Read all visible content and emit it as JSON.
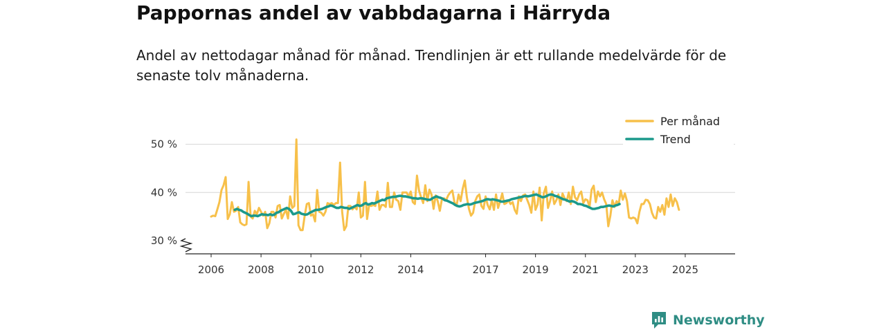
{
  "header": {
    "title": "Pappornas andel av vabbdagarna i Härryda",
    "subtitle": "Andel av nettodagar månad för månad. Trendlinjen är ett rullande medelvärde för de senaste tolv månaderna."
  },
  "brand": {
    "name": "Newsworthy",
    "icon": "newsworthy-logo-icon",
    "color": "#2f8d84"
  },
  "chart_data": {
    "type": "line",
    "title": "Pappornas andel av vabbdagarna i Härryda",
    "xlabel": "",
    "ylabel": "",
    "ylim": [
      30,
      50
    ],
    "y_ticks": [
      {
        "value": 30,
        "label": "30 %"
      },
      {
        "value": 40,
        "label": "40 %"
      },
      {
        "value": 50,
        "label": "50 %"
      }
    ],
    "x_ticks": [
      {
        "value": 2006,
        "label": "2006"
      },
      {
        "value": 2008,
        "label": "2008"
      },
      {
        "value": 2010,
        "label": "2010"
      },
      {
        "value": 2012,
        "label": "2012"
      },
      {
        "value": 2014,
        "label": "2014"
      },
      {
        "value": 2017,
        "label": "2017"
      },
      {
        "value": 2019,
        "label": "2019"
      },
      {
        "value": 2021,
        "label": "2021"
      },
      {
        "value": 2023,
        "label": "2023"
      },
      {
        "value": 2025,
        "label": "2025"
      }
    ],
    "axis_break": true,
    "grid": true,
    "legend_position": "top-right",
    "series": [
      {
        "name": "Per månad",
        "color": "#f7c04a",
        "x_start": 2006.0,
        "x_step": 0.08333,
        "values": [
          35,
          35.2,
          35.1,
          36.5,
          38,
          40.5,
          41.5,
          43.2,
          34.5,
          35.5,
          38,
          36,
          36.2,
          37,
          33.8,
          33.4,
          33.2,
          33.4,
          42.2,
          35,
          34.6,
          36.2,
          35.5,
          36.8,
          36,
          35.2,
          36,
          32.6,
          33.6,
          36,
          36,
          34.8,
          37.2,
          37.4,
          34.6,
          35.6,
          36.4,
          34.6,
          39.2,
          36.8,
          37.2,
          51,
          33.2,
          32.2,
          32.2,
          35.2,
          37.6,
          37.8,
          35.2,
          35.5,
          34,
          40.5,
          36,
          35.8,
          35.2,
          36,
          37.8,
          37.6,
          37.8,
          37.4,
          37.8,
          37.8,
          46.2,
          36,
          32.2,
          33,
          37.2,
          37.2,
          36.5,
          37,
          36.5,
          40,
          34.8,
          35.2,
          42.2,
          34.5,
          37.4,
          37.2,
          37.4,
          37.2,
          40.2,
          36.4,
          37.4,
          37.4,
          37,
          42,
          37,
          37,
          40,
          38.5,
          38.2,
          36.4,
          40,
          40,
          40,
          39.2,
          40.2,
          38,
          37.6,
          43.5,
          40.4,
          39,
          37.8,
          41.5,
          38.2,
          40.6,
          39.6,
          36.6,
          39.4,
          38.2,
          36.2,
          38.6,
          38.8,
          38.4,
          39.4,
          40,
          40.4,
          38,
          37.2,
          39.6,
          38.2,
          40.8,
          42.5,
          39,
          36.6,
          35.2,
          35.8,
          38.2,
          39.2,
          39.6,
          37.2,
          36.6,
          39.2,
          37.4,
          36.5,
          38.4,
          36.4,
          39.6,
          36.8,
          38.2,
          39.8,
          37.6,
          37.8,
          38.4,
          37.6,
          38,
          36.4,
          35.6,
          39.2,
          38.2,
          39.4,
          39.6,
          38.5,
          37.4,
          35.8,
          40.2,
          36.4,
          37.5,
          41,
          34.2,
          39.8,
          41.2,
          36.8,
          38.2,
          40.2,
          37.6,
          38.4,
          39.6,
          37.4,
          39.8,
          38.8,
          38.2,
          40,
          37.6,
          41.2,
          39,
          38.4,
          39.6,
          40.2,
          37.8,
          38.6,
          38.4,
          37,
          40.6,
          41.4,
          38,
          40.2,
          39.2,
          40,
          38.6,
          37.6,
          33,
          35.2,
          38.4,
          37,
          38.2,
          37.6,
          40.4,
          38.5,
          39.8,
          38.2,
          34.8,
          34.6,
          34.8,
          34.6,
          33.6,
          36,
          37.6,
          37.6,
          38.5,
          38.4,
          37.6,
          35.8,
          34.8,
          34.6,
          37,
          36,
          37.4,
          35.4,
          38.8,
          37,
          39.6,
          37.2,
          38.8,
          38,
          36.4
        ]
      },
      {
        "name": "Trend",
        "color": "#1b998b",
        "x_start": 2006.95,
        "x_step": 0.08333,
        "values": [
          36.4,
          36.6,
          36.4,
          36.3,
          36,
          35.8,
          35.6,
          35.3,
          35.1,
          35.2,
          35.2,
          35.1,
          35.3,
          35.5,
          35.4,
          35.4,
          35.3,
          35.5,
          35.3,
          35.4,
          35.8,
          35.9,
          36.2,
          36.4,
          36.6,
          36.8,
          36.6,
          36.2,
          35.5,
          35.6,
          35.8,
          35.9,
          35.6,
          35.5,
          35.4,
          35.5,
          35.8,
          36,
          36.2,
          36.4,
          36.4,
          36.5,
          36.6,
          36.8,
          37,
          37.1,
          37.3,
          37.2,
          37,
          36.8,
          36.8,
          37,
          36.9,
          36.8,
          36.8,
          36.6,
          36.8,
          37,
          37.2,
          37.4,
          37.2,
          37.3,
          37.6,
          37.8,
          37.5,
          37.6,
          37.8,
          37.7,
          37.9,
          38.1,
          38.3,
          38.5,
          38.4,
          38.8,
          38.9,
          39,
          39.1,
          39.1,
          39.2,
          39.3,
          39.3,
          39.2,
          39.2,
          39.1,
          39,
          38.9,
          38.8,
          38.8,
          38.7,
          38.8,
          38.8,
          38.7,
          38.6,
          38.5,
          38.5,
          38.8,
          39,
          39.2,
          39,
          38.9,
          38.7,
          38.4,
          38.3,
          38.1,
          37.9,
          37.7,
          37.4,
          37.2,
          37.1,
          37.2,
          37.4,
          37.5,
          37.6,
          37.5,
          37.6,
          37.8,
          37.9,
          38,
          38.1,
          38.2,
          38.4,
          38.6,
          38.6,
          38.5,
          38.6,
          38.5,
          38.4,
          38.3,
          38.1,
          38.1,
          38.2,
          38.3,
          38.4,
          38.6,
          38.7,
          38.8,
          38.9,
          39,
          39.1,
          39.2,
          39.3,
          39.2,
          39.3,
          39.4,
          39.5,
          39.6,
          39.4,
          39.2,
          39,
          39.1,
          39.3,
          39.5,
          39.6,
          39.5,
          39.3,
          39.2,
          39,
          38.8,
          38.6,
          38.5,
          38.3,
          38.1,
          38.2,
          38.1,
          37.9,
          37.6,
          37.6,
          37.5,
          37.3,
          37.2,
          37,
          36.8,
          36.6,
          36.6,
          36.7,
          36.8,
          37,
          37,
          37.1,
          37.2,
          37.3,
          37.2,
          37.1,
          37.3,
          37.4,
          37.6
        ]
      }
    ]
  }
}
